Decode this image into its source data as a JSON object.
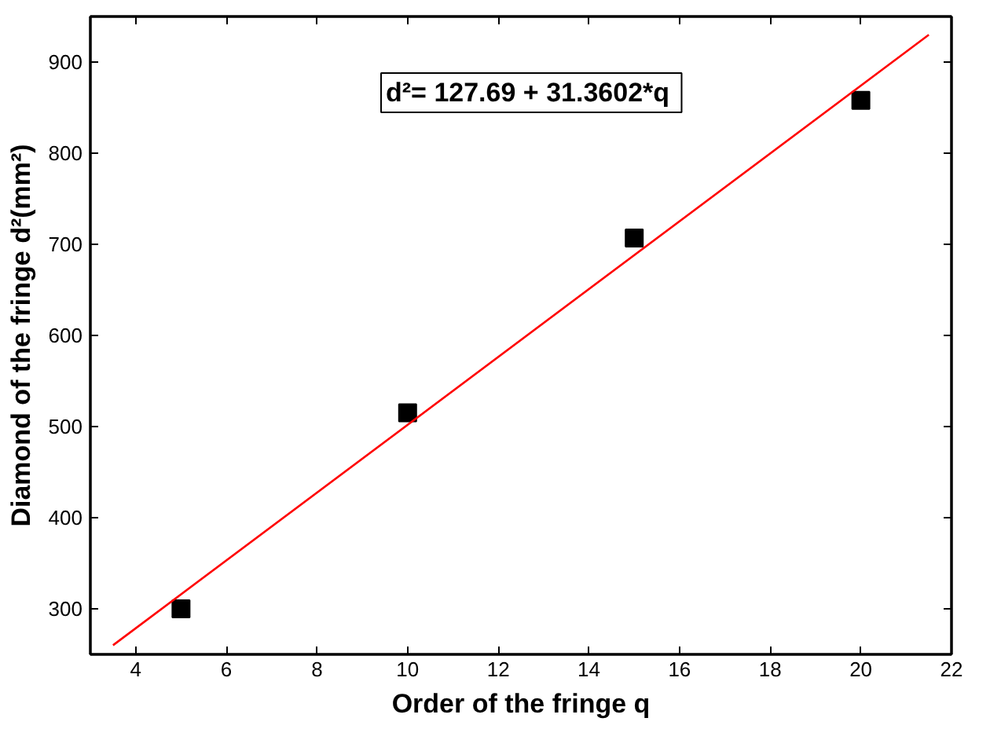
{
  "chart_data": {
    "type": "scatter",
    "xlabel": "Order of the fringe q",
    "ylabel": "Diamond of the fringe d²(mm²)",
    "annotations": [
      "d²= 127.69  + 31.3602*q"
    ],
    "series": [
      {
        "color": "#000000",
        "x": [
          5,
          10,
          15,
          20
        ],
        "values": [
          300,
          515,
          707,
          858
        ],
        "marker": "square"
      },
      {
        "type": "line",
        "color": "#ff0000",
        "x": [
          3.5,
          21.5
        ],
        "values": [
          260,
          930
        ],
        "line_style": "solid"
      }
    ],
    "xlim": [
      3,
      22
    ],
    "xticks": [
      4,
      6,
      8,
      10,
      12,
      14,
      16,
      18,
      20,
      22
    ],
    "ylim": [
      250,
      950
    ],
    "yticks": [
      300,
      400,
      500,
      600,
      700,
      800,
      900
    ],
    "grid": false
  }
}
